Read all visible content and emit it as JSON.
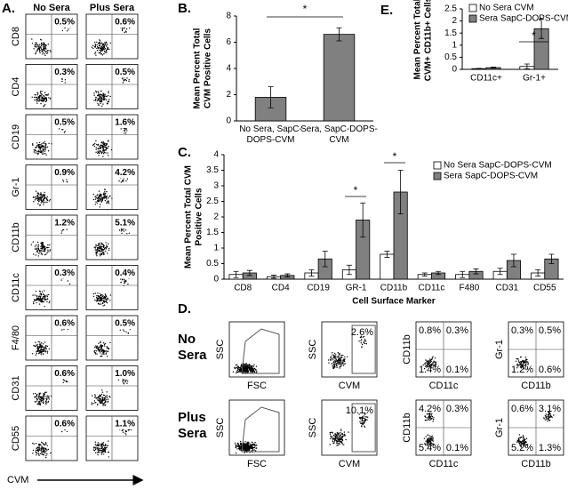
{
  "chart_data": [
    {
      "type": "bar",
      "label": "B.",
      "ylabel": [
        "Mean Percent Total",
        "CVM Positive Cells"
      ],
      "categories": [
        "No Sera, SapC-DOPS-CVM",
        "Sera, SapC-DOPS-CVM"
      ],
      "values": [
        1.8,
        6.6
      ],
      "errors": [
        0.8,
        0.5
      ],
      "color": "#808080",
      "ylim": [
        0,
        8
      ],
      "yticks": [
        0,
        2,
        4,
        6,
        8
      ],
      "annotations": [
        "*"
      ]
    },
    {
      "type": "bar",
      "label": "C.",
      "ylabel": [
        "Mean Percent Total CVM",
        "Positive Cells"
      ],
      "xlabel": "Cell Surface Marker",
      "categories": [
        "CD8",
        "CD4",
        "CD19",
        "GR-1",
        "CD11b",
        "CD11c",
        "F480",
        "CD31",
        "CD55"
      ],
      "series": [
        {
          "name": "No Sera SapC-DOPS-CVM",
          "color": "#ffffff",
          "values": [
            0.15,
            0.08,
            0.2,
            0.3,
            0.8,
            0.15,
            0.15,
            0.25,
            0.2
          ],
          "errors": [
            0.1,
            0.05,
            0.1,
            0.15,
            0.1,
            0.05,
            0.1,
            0.1,
            0.1
          ]
        },
        {
          "name": "Sera  SapC-DOPS-CVM",
          "color": "#808080",
          "values": [
            0.2,
            0.12,
            0.65,
            1.9,
            2.8,
            0.2,
            0.25,
            0.6,
            0.65
          ],
          "errors": [
            0.08,
            0.05,
            0.25,
            0.55,
            0.7,
            0.05,
            0.08,
            0.2,
            0.15
          ]
        }
      ],
      "ylim": [
        0,
        4
      ],
      "yticks": [
        0,
        0.5,
        1,
        1.5,
        2,
        2.5,
        3,
        3.5,
        4
      ],
      "annotations": [
        "*",
        "*"
      ]
    },
    {
      "type": "bar",
      "label": "E.",
      "ylabel": [
        "Mean Percent Total",
        "CVM+ CD11b+ Cells"
      ],
      "categories": [
        "CD11c+",
        "Gr-1+"
      ],
      "series": [
        {
          "name": "No Sera CVM",
          "color": "#ffffff",
          "values": [
            0.03,
            0.12
          ],
          "errors": [
            0.01,
            0.1
          ]
        },
        {
          "name": "Sera  SapC-DOPS-CVM",
          "color": "#808080",
          "values": [
            0.07,
            1.68
          ],
          "errors": [
            0.02,
            0.4
          ]
        }
      ],
      "ylim": [
        0,
        2.5
      ],
      "yticks": [
        0,
        0.5,
        1,
        1.5,
        2,
        2.5
      ],
      "annotations": [
        "*"
      ]
    }
  ],
  "panel_a": {
    "label": "A.",
    "columns": [
      "No Sera",
      "Plus Sera"
    ],
    "xlabel": "CVM",
    "rows": [
      {
        "marker": "CD8",
        "values": [
          "0.5%",
          "0.6%"
        ]
      },
      {
        "marker": "CD4",
        "values": [
          "0.3%",
          "0.5%"
        ]
      },
      {
        "marker": "CD19",
        "values": [
          "0.5%",
          "1.6%"
        ]
      },
      {
        "marker": "Gr-1",
        "values": [
          "0.9%",
          "4.2%"
        ]
      },
      {
        "marker": "CD11b",
        "values": [
          "1.2%",
          "5.1%"
        ]
      },
      {
        "marker": "CD11c",
        "values": [
          "0.3%",
          "0.4%"
        ]
      },
      {
        "marker": "F4/80",
        "values": [
          "0.6%",
          "0.5%"
        ]
      },
      {
        "marker": "CD31",
        "values": [
          "0.6%",
          "1.0%"
        ]
      },
      {
        "marker": "CD55",
        "values": [
          "0.6%",
          "1.1%"
        ]
      }
    ]
  },
  "panel_d": {
    "label": "D.",
    "axes": [
      [
        "FSC",
        "SSC"
      ],
      [
        "CVM",
        "SSC"
      ],
      [
        "CD11c",
        "CD11b"
      ],
      [
        "CD11b",
        "Gr-1"
      ]
    ],
    "rows": [
      {
        "name": [
          "No",
          "Sera"
        ],
        "cvm": "2.6%",
        "cd11b_cd11c": [
          "0.8%",
          "0.3%",
          "1.4%",
          "0.1%"
        ],
        "gr1_cd11b": [
          "0.3%",
          "0.5%",
          "1.2%",
          "0.6%"
        ]
      },
      {
        "name": [
          "Plus",
          "Sera"
        ],
        "cvm": "10.1%",
        "cd11b_cd11c": [
          "4.2%",
          "0.3%",
          "5.4%",
          "0.1%"
        ],
        "gr1_cd11b": [
          "0.6%",
          "3.1%",
          "5.2%",
          "1.3%"
        ]
      }
    ]
  }
}
